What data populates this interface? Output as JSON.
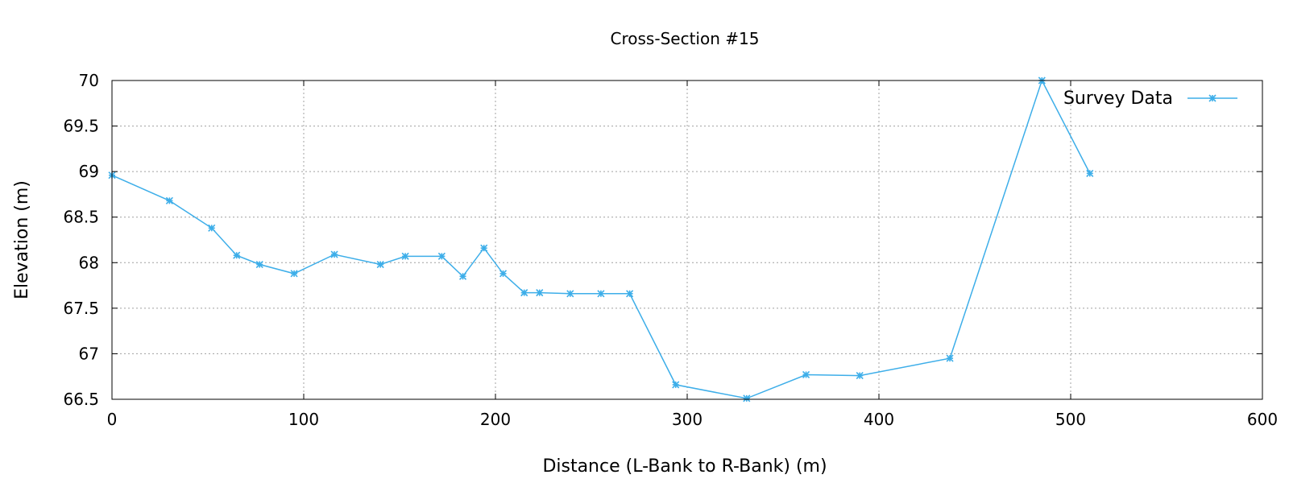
{
  "chart_data": {
    "type": "line",
    "title": "Cross-Section #15",
    "xlabel": "Distance (L-Bank to R-Bank) (m)",
    "ylabel": "Elevation (m)",
    "xlim": [
      0,
      600
    ],
    "ylim": [
      66.5,
      70
    ],
    "xticks": [
      "0",
      "100",
      "200",
      "300",
      "400",
      "500",
      "600"
    ],
    "yticks": [
      "66.5",
      "67",
      "67.5",
      "68",
      "68.5",
      "69",
      "69.5",
      "70"
    ],
    "grid": true,
    "legend_position": "top-right",
    "series": [
      {
        "name": "Survey Data",
        "color": "#3daee9",
        "marker": "star",
        "x": [
          0,
          30,
          52,
          65,
          77,
          95,
          116,
          140,
          153,
          172,
          183,
          194,
          204,
          215,
          223,
          239,
          255,
          270,
          294,
          331,
          362,
          390,
          437,
          485,
          510
        ],
        "y": [
          68.96,
          68.68,
          68.38,
          68.08,
          67.98,
          67.88,
          68.09,
          67.98,
          68.07,
          68.07,
          67.85,
          68.16,
          67.88,
          67.67,
          67.67,
          67.66,
          67.66,
          67.66,
          66.66,
          66.51,
          66.77,
          66.76,
          66.95,
          70.0,
          68.98
        ]
      }
    ]
  }
}
